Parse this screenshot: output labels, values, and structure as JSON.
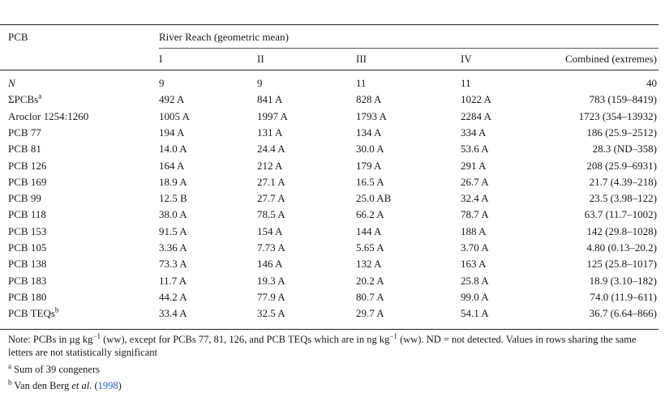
{
  "table": {
    "col_header_pcb": "PCB",
    "group_header": "River Reach (geometric mean)",
    "sub_headers": [
      "I",
      "II",
      "III",
      "IV",
      "Combined (extremes)"
    ],
    "rows": [
      {
        "label": "N",
        "sup": "",
        "values": [
          "9",
          "9",
          "11",
          "11",
          "40"
        ]
      },
      {
        "label": "ΣPCBs",
        "sup": "a",
        "values": [
          "492 A",
          "841 A",
          "828 A",
          "1022 A",
          "783 (159–8419)"
        ]
      },
      {
        "label": "Aroclor 1254:1260",
        "sup": "",
        "values": [
          "1005 A",
          "1997 A",
          "1793 A",
          "2284 A",
          "1723 (354–13932)"
        ]
      },
      {
        "label": "PCB 77",
        "sup": "",
        "values": [
          "194 A",
          "131 A",
          "134 A",
          "334 A",
          "186 (25.9–2512)"
        ]
      },
      {
        "label": "PCB 81",
        "sup": "",
        "values": [
          "14.0 A",
          "24.4 A",
          "30.0 A",
          "53.6 A",
          "28.3 (ND–358)"
        ]
      },
      {
        "label": "PCB 126",
        "sup": "",
        "values": [
          "164 A",
          "212 A",
          "179 A",
          "291 A",
          "208 (25.9–6931)"
        ]
      },
      {
        "label": "PCB 169",
        "sup": "",
        "values": [
          "18.9 A",
          "27.1 A",
          "16.5 A",
          "26.7 A",
          "21.7 (4.39–218)"
        ]
      },
      {
        "label": "PCB 99",
        "sup": "",
        "values": [
          "12.5 B",
          "27.7 A",
          "25.0 AB",
          "32.4 A",
          "23.5 (3.98–122)"
        ]
      },
      {
        "label": "PCB 118",
        "sup": "",
        "values": [
          "38.0 A",
          "78.5 A",
          "66.2 A",
          "78.7 A",
          "63.7 (11.7–1002)"
        ]
      },
      {
        "label": "PCB 153",
        "sup": "",
        "values": [
          "91.5 A",
          "154 A",
          "144 A",
          "188 A",
          "142 (29.8–1028)"
        ]
      },
      {
        "label": "PCB 105",
        "sup": "",
        "values": [
          "3.36 A",
          "7.73 A",
          "5.65 A",
          "3.70 A",
          "4.80 (0.13–20.2)"
        ]
      },
      {
        "label": "PCB 138",
        "sup": "",
        "values": [
          "73.3 A",
          "146 A",
          "132 A",
          "163 A",
          "125 (25.8–1017)"
        ]
      },
      {
        "label": "PCB 183",
        "sup": "",
        "values": [
          "11.7 A",
          "19.3 A",
          "20.2 A",
          "25.8 A",
          "18.9 (3.10–182)"
        ]
      },
      {
        "label": "PCB 180",
        "sup": "",
        "values": [
          "44.2 A",
          "77.9 A",
          "80.7 A",
          "99.0 A",
          "74.0 (11.9–611)"
        ]
      },
      {
        "label": "PCB TEQs",
        "sup": "b",
        "values": [
          "33.4 A",
          "32.5 A",
          "29.7 A",
          "54.1 A",
          "36.7 (6.64–866)"
        ]
      }
    ]
  },
  "note": {
    "part1": "Note: PCBs in µg kg",
    "sup1": "−1",
    "part2": " (ww), except for PCBs 77, 81, 126, and PCB TEQs which are in ng kg",
    "sup2": "−1",
    "part3": " (ww). ND = not detected. Values in rows sharing the same letters are not statistically significant"
  },
  "footnotes": {
    "a_mark": "a",
    "a_text": " Sum of 39 congeners",
    "b_mark": "b",
    "b_text_pre": " Van den Berg ",
    "b_text_etal": "et al.",
    "b_text_open": " (",
    "b_year": "1998",
    "b_text_close": ")"
  }
}
